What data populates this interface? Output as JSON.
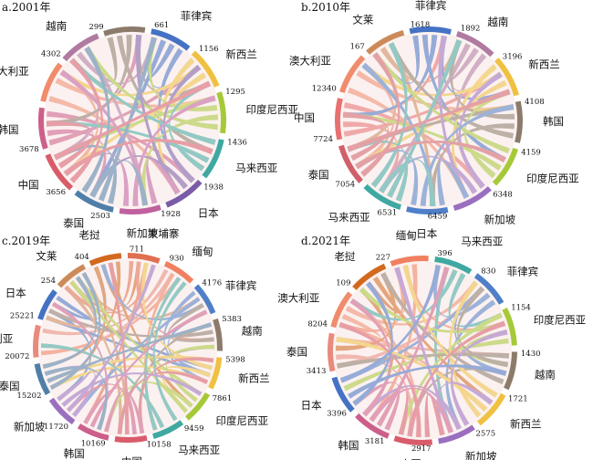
{
  "chart_data": [
    {
      "type": "chord",
      "title": "a.2001年",
      "nodes": [
        {
          "name": "韩国",
          "value": "3678",
          "color": "#cc5f8a"
        },
        {
          "name": "澳大利亚",
          "value": "",
          "color": "#f08c6c"
        },
        {
          "name": "越南",
          "value": "4302",
          "color": "#b07aa1"
        },
        {
          "name": "",
          "value": "299",
          "color": "#8c7b6b"
        },
        {
          "name": "菲律宾",
          "value": "661",
          "color": "#4472c4"
        },
        {
          "name": "新西兰",
          "value": "1156",
          "color": "#f0c040"
        },
        {
          "name": "印度尼西亚",
          "value": "1295",
          "color": "#a6c938"
        },
        {
          "name": "马来西亚",
          "value": "1436",
          "color": "#3fa9a1"
        },
        {
          "name": "日本",
          "value": "1938",
          "color": "#7a5ba8"
        },
        {
          "name": "新加坡",
          "value": "1928",
          "color": "#c0609f"
        },
        {
          "name": "泰国",
          "value": "2503",
          "color": "#4f7fa8"
        },
        {
          "name": "中国",
          "value": "3656",
          "color": "#d85c6a"
        }
      ]
    },
    {
      "type": "chord",
      "title": "b.2010年",
      "nodes": [
        {
          "name": "中国",
          "value": "7724",
          "color": "#e87070"
        },
        {
          "name": "澳大利亚",
          "value": "12340",
          "color": "#f08c6c"
        },
        {
          "name": "文莱",
          "value": "167",
          "color": "#cc8a5a"
        },
        {
          "name": "菲律宾",
          "value": "1618",
          "color": "#4472c4"
        },
        {
          "name": "越南",
          "value": "1892",
          "color": "#b07aa1"
        },
        {
          "name": "新西兰",
          "value": "3196",
          "color": "#f0c040"
        },
        {
          "name": "韩国",
          "value": "4108",
          "color": "#8c7b6b"
        },
        {
          "name": "印度尼西亚",
          "value": "4159",
          "color": "#a6c938"
        },
        {
          "name": "新加坡",
          "value": "6348",
          "color": "#9a6fc0"
        },
        {
          "name": "日本",
          "value": "6459",
          "color": "#4f7fc8"
        },
        {
          "name": "马来西亚",
          "value": "6531",
          "color": "#3fa9a1"
        },
        {
          "name": "泰国",
          "value": "7054",
          "color": "#d0606a"
        }
      ]
    },
    {
      "type": "chord",
      "title": "c.2019年",
      "nodes": [
        {
          "name": "澳大利亚",
          "value": "20072",
          "color": "#e88a7c"
        },
        {
          "name": "日本",
          "value": "25221",
          "color": "#4472c4"
        },
        {
          "name": "文莱",
          "value": "254",
          "color": "#cc8a5a"
        },
        {
          "name": "老挝",
          "value": "404",
          "color": "#d2691e"
        },
        {
          "name": "柬埔寨",
          "value": "711",
          "color": "#e07050"
        },
        {
          "name": "缅甸",
          "value": "930",
          "color": "#f08060"
        },
        {
          "name": "菲律宾",
          "value": "4176",
          "color": "#4f7fc8"
        },
        {
          "name": "越南",
          "value": "5383",
          "color": "#8c7b6b"
        },
        {
          "name": "新西兰",
          "value": "5398",
          "color": "#f0c040"
        },
        {
          "name": "印度尼西亚",
          "value": "7861",
          "color": "#a6c938"
        },
        {
          "name": "马来西亚",
          "value": "9459",
          "color": "#3fa9a1"
        },
        {
          "name": "中国",
          "value": "10158",
          "color": "#d85c6a"
        },
        {
          "name": "韩国",
          "value": "10169",
          "color": "#cc5f8a"
        },
        {
          "name": "新加坡",
          "value": "11720",
          "color": "#9a6fc0"
        },
        {
          "name": "泰国",
          "value": "15202",
          "color": "#4f7fa8"
        }
      ]
    },
    {
      "type": "chord",
      "title": "d.2021年",
      "nodes": [
        {
          "name": "泰国",
          "value": "3413",
          "color": "#e88a7c"
        },
        {
          "name": "澳大利亚",
          "value": "8204",
          "color": "#f08c6c"
        },
        {
          "name": "老挝",
          "value": "109",
          "color": "#d2691e"
        },
        {
          "name": "缅甸",
          "value": "227",
          "color": "#f08060"
        },
        {
          "name": "马来西亚",
          "value": "396",
          "color": "#3fa9a1"
        },
        {
          "name": "菲律宾",
          "value": "830",
          "color": "#4f7fc8"
        },
        {
          "name": "印度尼西亚",
          "value": "1154",
          "color": "#a6c938"
        },
        {
          "name": "越南",
          "value": "1430",
          "color": "#8c7b6b"
        },
        {
          "name": "新西兰",
          "value": "1721",
          "color": "#f0c040"
        },
        {
          "name": "新加坡",
          "value": "2575",
          "color": "#9a6fc0"
        },
        {
          "name": "中国",
          "value": "2917",
          "color": "#d85c6a"
        },
        {
          "name": "韩国",
          "value": "3181",
          "color": "#cc5f8a"
        },
        {
          "name": "日本",
          "value": "3396",
          "color": "#4472c4"
        }
      ]
    }
  ]
}
